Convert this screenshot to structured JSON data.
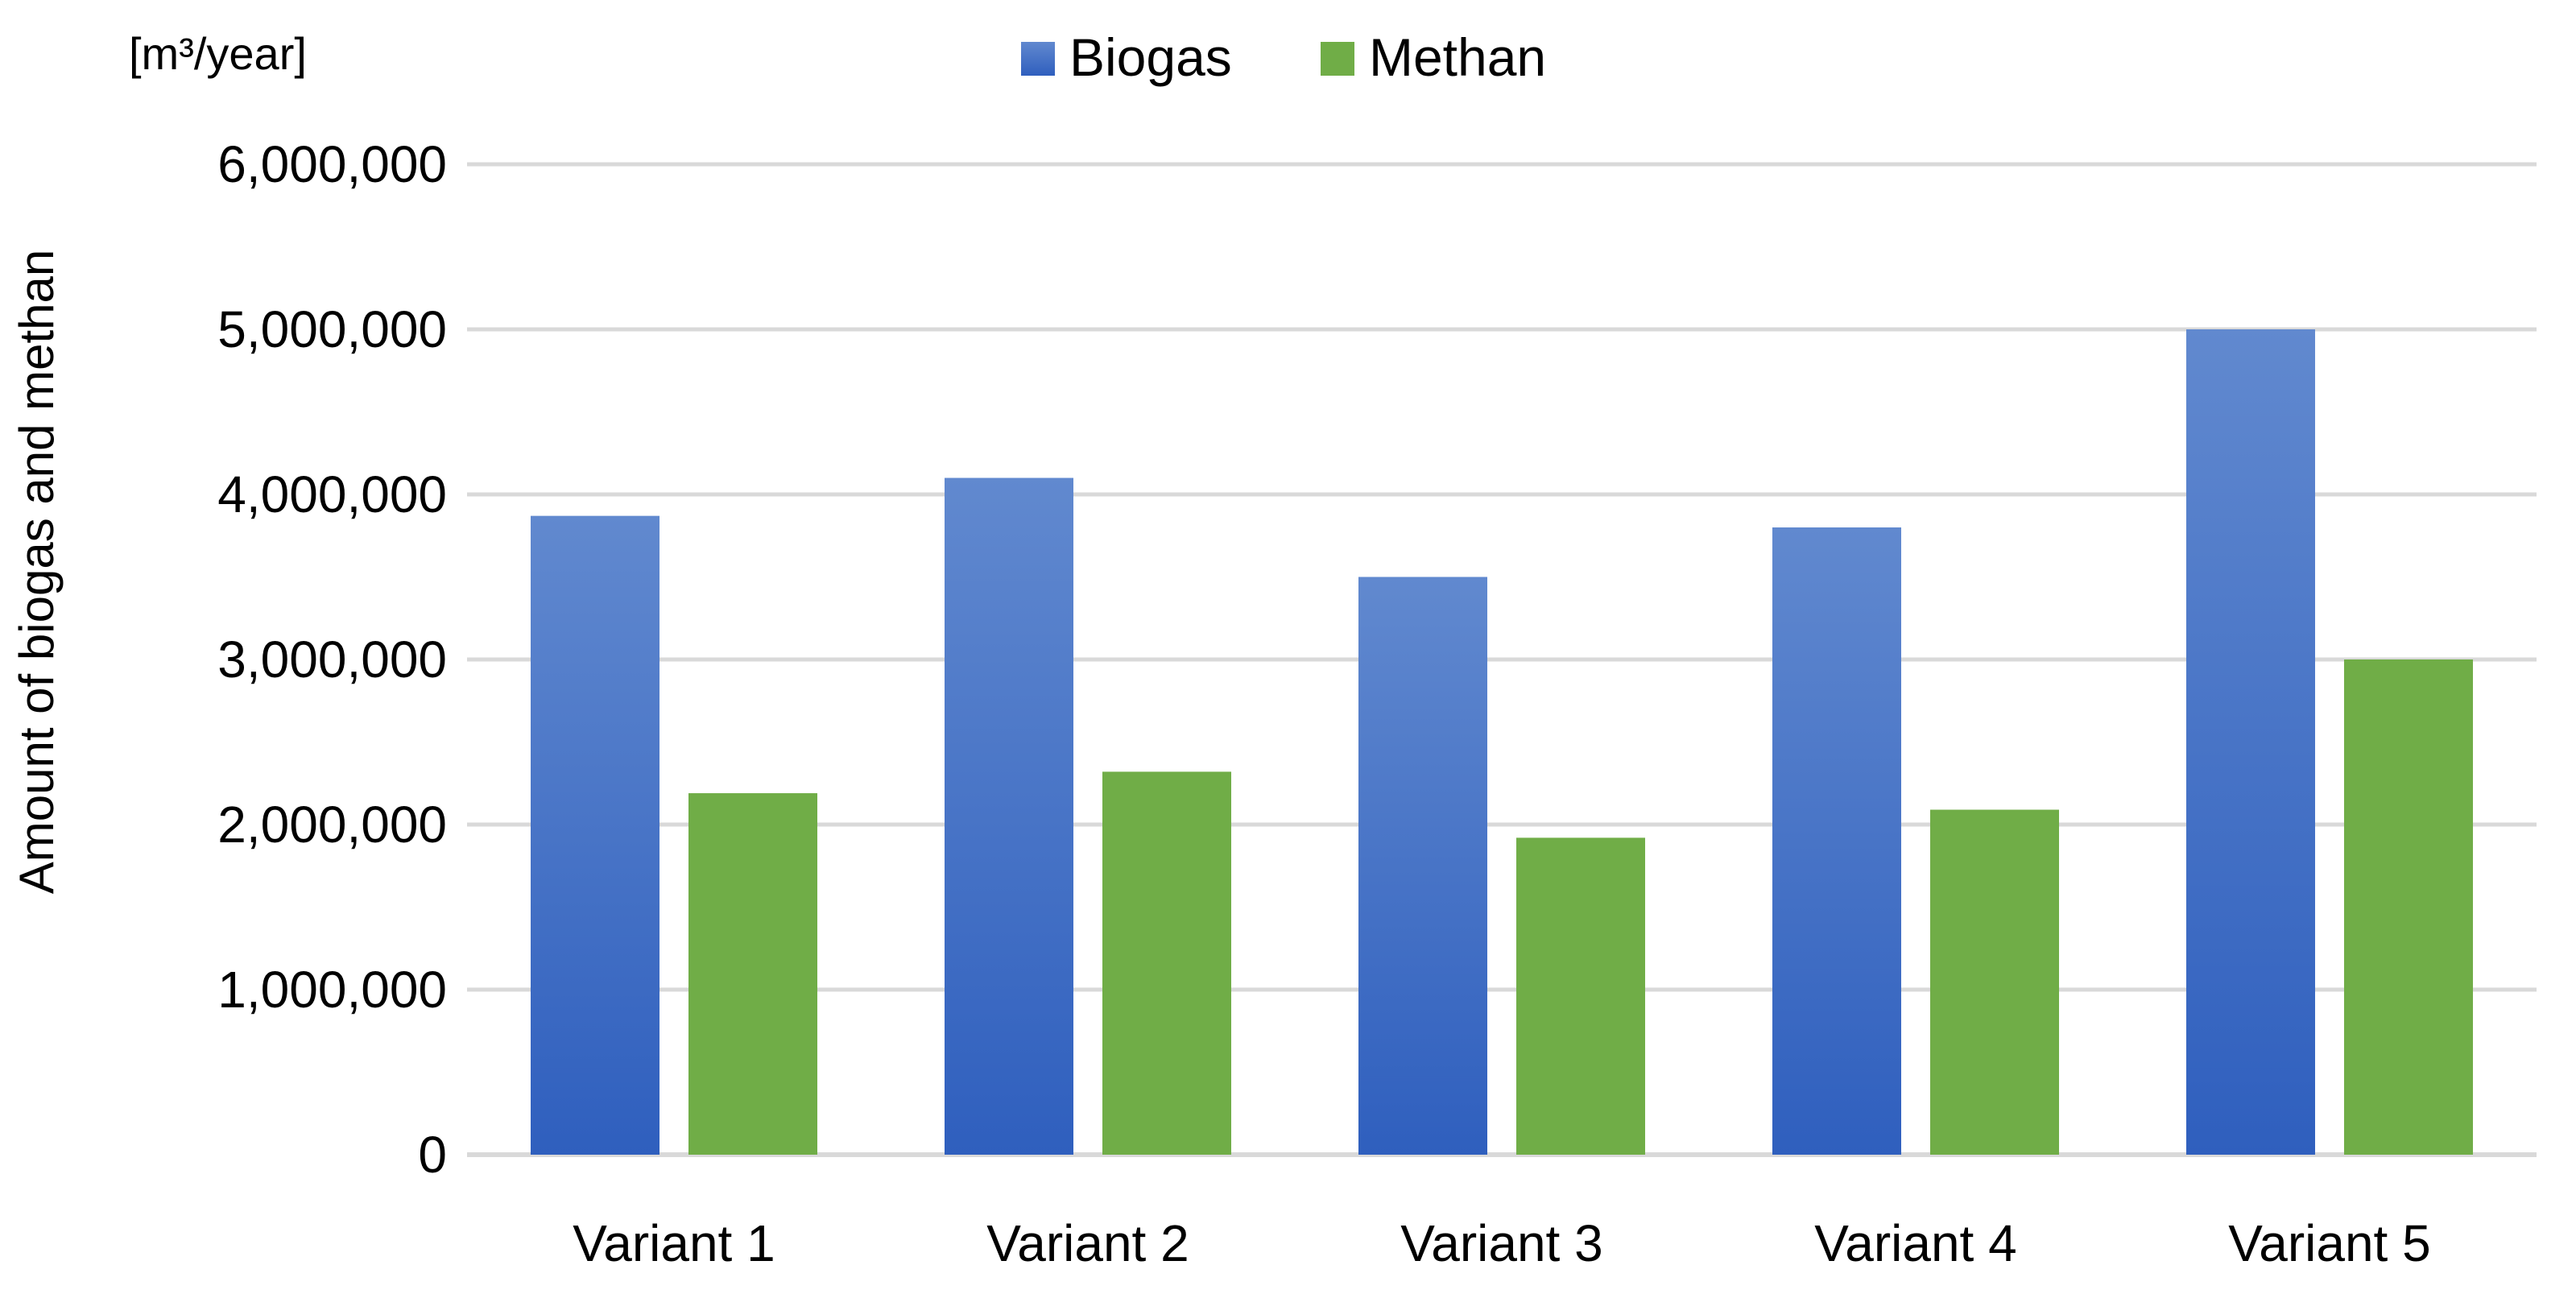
{
  "chart_data": {
    "type": "bar",
    "categories": [
      "Variant 1",
      "Variant 2",
      "Variant 3",
      "Variant 4",
      "Variant 5"
    ],
    "series": [
      {
        "name": "Biogas",
        "values": [
          3870000,
          4100000,
          3500000,
          3800000,
          5000000
        ],
        "color": "#4472C4"
      },
      {
        "name": "Methan",
        "values": [
          2190000,
          2320000,
          1920000,
          2090000,
          3000000
        ],
        "color": "#70AD47"
      }
    ],
    "title": "",
    "xlabel": "",
    "ylabel": "Amount of biogas and methan",
    "unit_label": "[m³/year]",
    "ylim": [
      0,
      6000000
    ],
    "yticks": [
      "0",
      "1,000,000",
      "2,000,000",
      "3,000,000",
      "4,000,000",
      "5,000,000",
      "6,000,000"
    ],
    "grid": true,
    "legend_position": "top-center"
  }
}
